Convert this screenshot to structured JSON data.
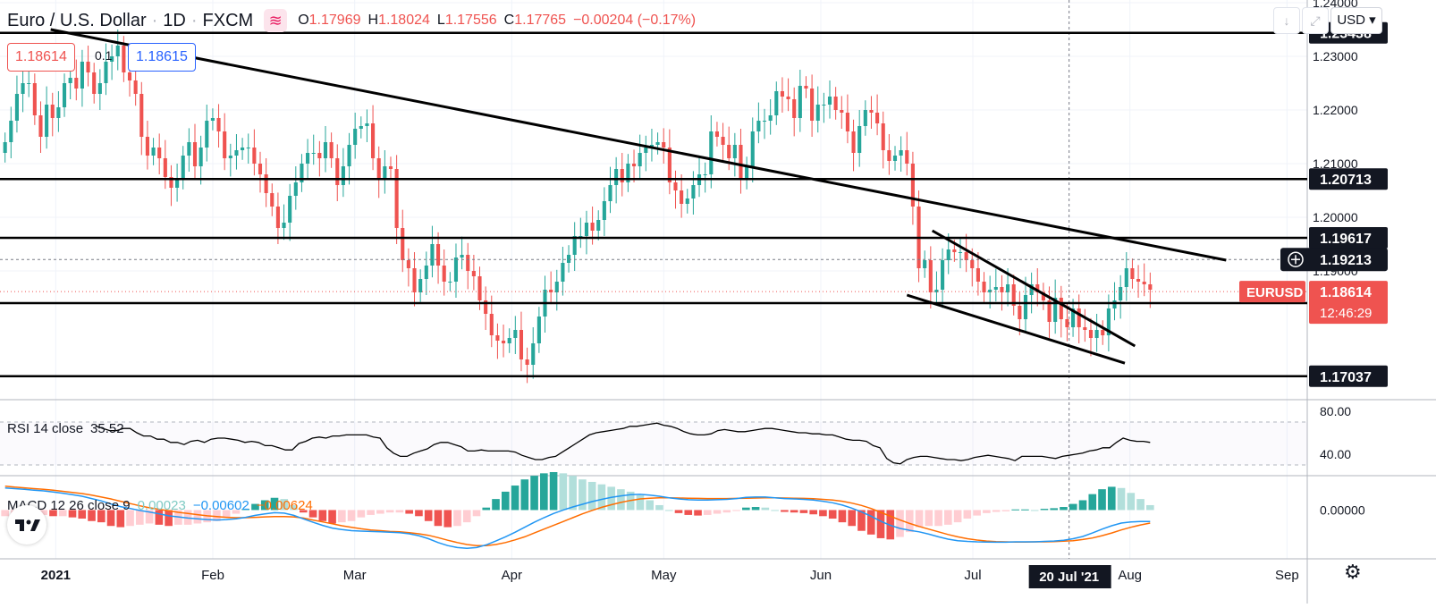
{
  "header": {
    "symbol": "Euro / U.S. Dollar",
    "interval": "1D",
    "exchange": "FXCM",
    "ohlc": {
      "o_label": "O",
      "o": "1.17969",
      "h_label": "H",
      "h": "1.18024",
      "l_label": "L",
      "l": "1.17556",
      "c_label": "C",
      "c": "1.17765",
      "change": "−0.00204 (−0.17%)"
    },
    "sell_price": "1.18614",
    "spread": "0.1",
    "buy_price": "1.18615",
    "currency": "USD"
  },
  "colors": {
    "up": "#26a69a",
    "down": "#ef5350",
    "line": "#000000",
    "macd": "#2196f3",
    "signal": "#ff6d00",
    "hist_up_strong": "#26a69a",
    "hist_up_weak": "#b2dfdb",
    "hist_down_strong": "#ef5350",
    "hist_down_weak": "#ffcdd2"
  },
  "chart_data": [
    {
      "type": "candlestick",
      "ylim": [
        1.166,
        1.2405
      ],
      "price_ticks": [
        "1.24000",
        "1.23000",
        "1.22000",
        "1.21000",
        "1.20000",
        "1.19000"
      ],
      "x_labels": [
        "2021",
        "Feb",
        "Mar",
        "Apr",
        "May",
        "Jun",
        "Jul",
        "Aug",
        "Sep"
      ],
      "x_highlight": "20 Jul '21",
      "horizontal_levels": [
        "1.23438",
        "1.20713",
        "1.19617",
        "1.18400",
        "1.17037"
      ],
      "crosshair_price": "1.19213",
      "last_price_label": "EURUSD",
      "last_price": "1.18614",
      "countdown": "12:46:29",
      "trendlines": [
        {
          "from": [
            "2020-12-31",
            1.235
          ],
          "to": [
            "2021-08-20",
            1.192
          ]
        },
        {
          "from": [
            "2021-06-23",
            1.1975
          ],
          "to": [
            "2021-08-02",
            1.176
          ]
        },
        {
          "from": [
            "2021-06-18",
            1.1855
          ],
          "to": [
            "2021-07-31",
            1.1728
          ]
        }
      ],
      "candles_close": [
        1.214,
        1.218,
        1.223,
        1.225,
        1.225,
        1.219,
        1.215,
        1.221,
        1.2185,
        1.2205,
        1.225,
        1.226,
        1.224,
        1.229,
        1.227,
        1.223,
        1.225,
        1.229,
        1.23,
        1.232,
        1.227,
        1.2255,
        1.223,
        1.215,
        1.2115,
        1.213,
        1.211,
        1.2075,
        1.2055,
        1.207,
        1.2115,
        1.214,
        1.2095,
        1.213,
        1.218,
        1.2185,
        1.216,
        1.211,
        1.2115,
        1.2125,
        1.213,
        1.213,
        1.21,
        1.208,
        1.2045,
        1.202,
        1.198,
        1.199,
        1.204,
        1.2065,
        1.21,
        1.212,
        1.212,
        1.211,
        1.214,
        1.211,
        1.206,
        1.2095,
        1.2135,
        1.2165,
        1.217,
        1.2175,
        1.211,
        1.207,
        1.2095,
        1.209,
        1.198,
        1.192,
        1.1905,
        1.186,
        1.1885,
        1.191,
        1.195,
        1.191,
        1.188,
        1.188,
        1.1925,
        1.193,
        1.19,
        1.189,
        1.1845,
        1.182,
        1.178,
        1.177,
        1.1765,
        1.1775,
        1.179,
        1.1735,
        1.1725,
        1.1765,
        1.1815,
        1.1865,
        1.186,
        1.188,
        1.1915,
        1.193,
        1.1965,
        1.1965,
        1.199,
        1.1975,
        1.1995,
        1.203,
        1.206,
        1.209,
        1.2065,
        1.21,
        1.2095,
        1.212,
        1.213,
        1.2135,
        1.214,
        1.213,
        1.2065,
        1.205,
        1.2025,
        1.2035,
        1.206,
        1.208,
        1.208,
        1.216,
        1.215,
        1.2135,
        1.211,
        1.2135,
        1.207,
        1.2095,
        1.216,
        1.218,
        1.218,
        1.219,
        1.2235,
        1.2225,
        1.222,
        1.2185,
        1.2245,
        1.224,
        1.218,
        1.221,
        1.221,
        1.2225,
        1.22,
        1.2195,
        1.216,
        1.212,
        1.217,
        1.22,
        1.2195,
        1.2175,
        1.2125,
        1.2105,
        1.2115,
        1.2125,
        1.21,
        1.202,
        1.1905,
        1.192,
        1.186,
        1.1865,
        1.192,
        1.194,
        1.1935,
        1.1935,
        1.192,
        1.1905,
        1.188,
        1.186,
        1.1865,
        1.187,
        1.186,
        1.1875,
        1.1835,
        1.181,
        1.1855,
        1.1875,
        1.186,
        1.1845,
        1.1805,
        1.185,
        1.181,
        1.1795,
        1.183,
        1.1795,
        1.179,
        1.1775,
        1.179,
        1.178,
        1.183,
        1.1845,
        1.187,
        1.1905,
        1.1885,
        1.188,
        1.1875,
        1.1865
      ]
    },
    {
      "type": "line",
      "name": "RSI",
      "label": "RSI 14 close",
      "value": "35.52",
      "ylim": [
        20,
        90
      ],
      "ticks": [
        "80.00",
        "40.00"
      ],
      "values": [
        66,
        64,
        62,
        62,
        64,
        64,
        60,
        57,
        57,
        54,
        54,
        51,
        51,
        49,
        52,
        53,
        51,
        54,
        55,
        55,
        54,
        53,
        51,
        52,
        51,
        48,
        48,
        46,
        44,
        44,
        50,
        52,
        55,
        56,
        55,
        57,
        57,
        58,
        58,
        58,
        58,
        56,
        55,
        46,
        41,
        38,
        38,
        41,
        43,
        45,
        49,
        51,
        51,
        49,
        47,
        43,
        43,
        44,
        43,
        43,
        43,
        43,
        42,
        39,
        37,
        35,
        35,
        37,
        38,
        42,
        46,
        50,
        54,
        58,
        60,
        61,
        62,
        63,
        64,
        66,
        66,
        67,
        68,
        69,
        67,
        66,
        64,
        61,
        59,
        58,
        58,
        59,
        62,
        63,
        62,
        61,
        61,
        62,
        63,
        64,
        64,
        63,
        62,
        61,
        60,
        60,
        59,
        59,
        58,
        58,
        56,
        54,
        53,
        53,
        52,
        48,
        46,
        36,
        32,
        31,
        35,
        37,
        38,
        38,
        37,
        36,
        35,
        35,
        34,
        35,
        37,
        38,
        39,
        38,
        37,
        36,
        34,
        38,
        38,
        38,
        38,
        37,
        36,
        38,
        39,
        40,
        41,
        43,
        44,
        46,
        46,
        51,
        55,
        53,
        52,
        52,
        51
      ]
    },
    {
      "type": "line",
      "name": "MACD",
      "label": "MACD 12 26 close 9",
      "hist_value": "0.00023",
      "macd_value": "−0.00602",
      "signal_value": "−0.00624",
      "ylim": [
        -0.0255,
        0.0175
      ],
      "ticks": [
        "0.00000"
      ],
      "macd": [
        0.0115,
        0.0112,
        0.0108,
        0.0104,
        0.01,
        0.0094,
        0.0088,
        0.008,
        0.0072,
        0.006,
        0.0048,
        0.0032,
        0.0018,
        0.0008,
        -0.0002,
        -0.001,
        -0.002,
        -0.003,
        -0.0036,
        -0.0042,
        -0.0046,
        -0.005,
        -0.0052,
        -0.005,
        -0.0046,
        -0.0038,
        -0.0028,
        -0.002,
        -0.0014,
        -0.0016,
        -0.0028,
        -0.0046,
        -0.0064,
        -0.008,
        -0.0094,
        -0.0102,
        -0.0108,
        -0.011,
        -0.0112,
        -0.0114,
        -0.0116,
        -0.0118,
        -0.0124,
        -0.0134,
        -0.015,
        -0.017,
        -0.0186,
        -0.0196,
        -0.02,
        -0.0196,
        -0.0182,
        -0.0162,
        -0.014,
        -0.0116,
        -0.009,
        -0.0064,
        -0.004,
        -0.0018,
        0.0,
        0.0016,
        0.003,
        0.0044,
        0.0056,
        0.0066,
        0.0074,
        0.008,
        0.0082,
        0.0078,
        0.0072,
        0.0064,
        0.0058,
        0.0054,
        0.0052,
        0.0052,
        0.0054,
        0.0056,
        0.006,
        0.0066,
        0.0068,
        0.0068,
        0.0064,
        0.006,
        0.0058,
        0.0056,
        0.0052,
        0.0046,
        0.0038,
        0.0026,
        0.001,
        -0.001,
        -0.0032,
        -0.0058,
        -0.008,
        -0.0096,
        -0.0106,
        -0.0114,
        -0.0126,
        -0.014,
        -0.0152,
        -0.016,
        -0.0164,
        -0.0166,
        -0.0167,
        -0.0168,
        -0.0168,
        -0.0166,
        -0.0166,
        -0.0166,
        -0.0164,
        -0.0162,
        -0.0158,
        -0.015,
        -0.0138,
        -0.012,
        -0.01,
        -0.0082,
        -0.0068,
        -0.0062,
        -0.006,
        -0.006
      ],
      "signal": [
        0.0125,
        0.012,
        0.0116,
        0.0112,
        0.0108,
        0.0104,
        0.0098,
        0.0092,
        0.0086,
        0.0078,
        0.0068,
        0.0058,
        0.0046,
        0.0034,
        0.0022,
        0.0012,
        0.0004,
        -0.0004,
        -0.0012,
        -0.0018,
        -0.0024,
        -0.003,
        -0.0034,
        -0.0038,
        -0.004,
        -0.004,
        -0.0038,
        -0.0036,
        -0.0034,
        -0.0034,
        -0.0036,
        -0.0042,
        -0.0052,
        -0.0062,
        -0.0072,
        -0.0082,
        -0.009,
        -0.0098,
        -0.0104,
        -0.0108,
        -0.0112,
        -0.0114,
        -0.0118,
        -0.0124,
        -0.0132,
        -0.0144,
        -0.0158,
        -0.017,
        -0.018,
        -0.0186,
        -0.0186,
        -0.018,
        -0.017,
        -0.0156,
        -0.014,
        -0.012,
        -0.01,
        -0.008,
        -0.006,
        -0.004,
        -0.002,
        -0.0002,
        0.0014,
        0.0028,
        0.004,
        0.005,
        0.0058,
        0.0062,
        0.0064,
        0.0064,
        0.0063,
        0.0062,
        0.0061,
        0.006,
        0.006,
        0.006,
        0.0061,
        0.0062,
        0.0063,
        0.0064,
        0.0064,
        0.0063,
        0.0062,
        0.0061,
        0.0059,
        0.0056,
        0.0052,
        0.0046,
        0.0036,
        0.0024,
        0.0008,
        -0.0012,
        -0.0032,
        -0.0052,
        -0.007,
        -0.0086,
        -0.01,
        -0.0114,
        -0.0128,
        -0.014,
        -0.015,
        -0.0157,
        -0.0162,
        -0.0165,
        -0.0166,
        -0.0167,
        -0.0167,
        -0.0166,
        -0.0166,
        -0.0165,
        -0.0163,
        -0.016,
        -0.0154,
        -0.0146,
        -0.0134,
        -0.012,
        -0.0104,
        -0.009,
        -0.0078,
        -0.0068,
        -0.0062
      ]
    }
  ],
  "footer": {
    "settings_icon": "gear-icon"
  }
}
